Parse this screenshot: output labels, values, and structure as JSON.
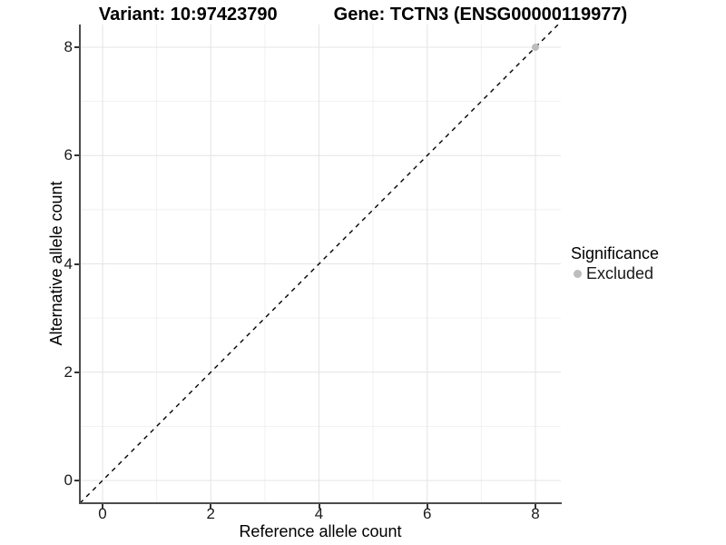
{
  "chart_data": {
    "type": "scatter",
    "titles": {
      "left": "Variant: 10:97423790",
      "right": "Gene: TCTN3 (ENSG00000119977)"
    },
    "xlabel": "Reference allele count",
    "ylabel": "Alternative allele count",
    "xlim": [
      -0.42,
      8.47
    ],
    "ylim": [
      -0.42,
      8.42
    ],
    "x_major_ticks": [
      0,
      2,
      4,
      6,
      8
    ],
    "x_minor_ticks": [
      1,
      3,
      5,
      7
    ],
    "y_major_ticks": [
      0,
      2,
      4,
      6,
      8
    ],
    "y_minor_ticks": [
      1,
      3,
      5,
      7
    ],
    "grid": "major and minor gridlines, white background",
    "identity_line": {
      "slope": 1,
      "intercept": 0,
      "style": "dashed"
    },
    "points": [
      {
        "x": 8,
        "y": 8,
        "significance": "Excluded"
      }
    ],
    "legend": {
      "title": "Significance",
      "position": "right",
      "items": [
        {
          "label": "Excluded",
          "color": "#bdbdbd"
        }
      ]
    },
    "colors": {
      "background": "#ffffff",
      "grid_major": "#e4e4e4",
      "grid_minor": "#f1f1f1",
      "axis_line": "#4d4d4d",
      "tick_mark": "#333333",
      "tick_text": "#1a1a1a",
      "title_text": "#000000",
      "point": "#bdbdbd",
      "identity_line": "#000000"
    }
  }
}
